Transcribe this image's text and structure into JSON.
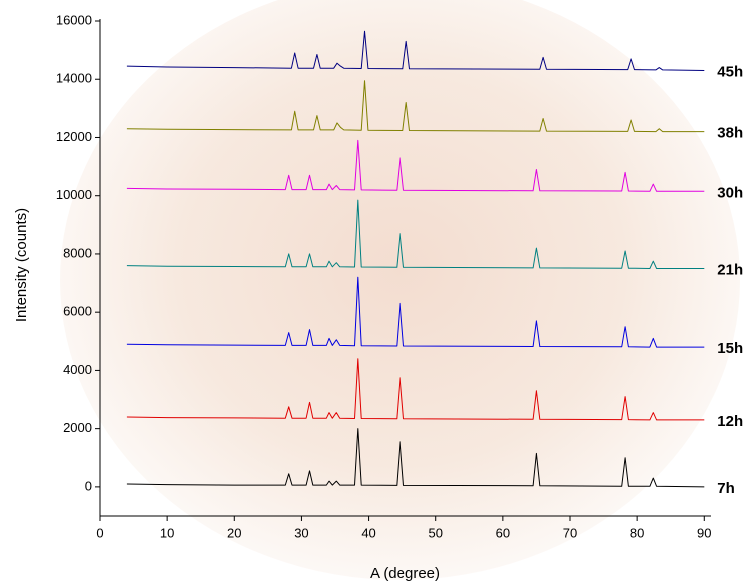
{
  "chart_data": {
    "type": "line",
    "x_label": "A (degree)",
    "y_label": "Intensity (counts)",
    "xlim": [
      0,
      91
    ],
    "ylim": [
      -1000,
      16000
    ],
    "xticks": [
      0,
      10,
      20,
      30,
      40,
      50,
      60,
      70,
      80,
      90
    ],
    "yticks": [
      0,
      2000,
      4000,
      6000,
      8000,
      10000,
      12000,
      14000,
      16000
    ],
    "grid": false,
    "series": [
      {
        "name": "45h",
        "color": "#000080",
        "x": [
          4,
          10,
          20,
          28.5,
          29,
          29.5,
          31.8,
          32.3,
          32.8,
          34.8,
          35.3,
          35.8,
          36.3,
          38.9,
          39.4,
          39.9,
          45.1,
          45.6,
          46.1,
          65.5,
          66,
          66.5,
          78.6,
          79.1,
          79.6,
          82.8,
          83.3,
          83.8,
          90
        ],
        "values": [
          14450,
          14420,
          14400,
          14380,
          14900,
          14380,
          14380,
          14850,
          14380,
          14380,
          14550,
          14450,
          14380,
          14370,
          15650,
          14370,
          14360,
          15300,
          14360,
          14340,
          14750,
          14340,
          14330,
          14700,
          14330,
          14320,
          14400,
          14320,
          14300
        ]
      },
      {
        "name": "38h",
        "color": "#808000",
        "x": [
          4,
          10,
          20,
          28.5,
          29,
          29.5,
          31.8,
          32.3,
          32.8,
          34.8,
          35.3,
          35.8,
          36.3,
          38.9,
          39.4,
          39.9,
          45.1,
          45.6,
          46.1,
          65.5,
          66,
          66.5,
          78.6,
          79.1,
          79.6,
          82.8,
          83.3,
          83.8,
          90
        ],
        "values": [
          12300,
          12280,
          12270,
          12260,
          12900,
          12260,
          12260,
          12750,
          12260,
          12260,
          12500,
          12350,
          12260,
          12250,
          13950,
          12250,
          12240,
          13200,
          12240,
          12220,
          12650,
          12220,
          12210,
          12600,
          12210,
          12200,
          12300,
          12200,
          12200
        ]
      },
      {
        "name": "30h",
        "color": "#e000e0",
        "x": [
          4,
          10,
          20,
          27.6,
          28.1,
          28.6,
          30.7,
          31.2,
          31.7,
          33.7,
          34.1,
          34.6,
          35.2,
          35.7,
          37.9,
          38.4,
          38.9,
          44.2,
          44.7,
          45.2,
          64.5,
          65,
          65.5,
          77.7,
          78.2,
          78.7,
          81.9,
          82.4,
          82.9,
          90
        ],
        "values": [
          10250,
          10230,
          10220,
          10210,
          10700,
          10210,
          10210,
          10700,
          10210,
          10210,
          10400,
          10210,
          10350,
          10210,
          10200,
          11900,
          10200,
          10190,
          11300,
          10190,
          10170,
          10900,
          10170,
          10160,
          10800,
          10160,
          10150,
          10400,
          10150,
          10150
        ]
      },
      {
        "name": "21h",
        "color": "#008080",
        "x": [
          4,
          10,
          20,
          27.6,
          28.1,
          28.6,
          30.7,
          31.2,
          31.7,
          33.7,
          34.1,
          34.6,
          35.2,
          35.7,
          37.9,
          38.4,
          38.9,
          44.2,
          44.7,
          45.2,
          64.5,
          65,
          65.5,
          77.7,
          78.2,
          78.7,
          81.9,
          82.4,
          82.9,
          90
        ],
        "values": [
          7600,
          7580,
          7570,
          7560,
          8000,
          7560,
          7560,
          8000,
          7560,
          7560,
          7750,
          7560,
          7700,
          7560,
          7550,
          9850,
          7550,
          7540,
          8700,
          7540,
          7520,
          8200,
          7520,
          7510,
          8100,
          7510,
          7500,
          7750,
          7500,
          7500
        ]
      },
      {
        "name": "15h",
        "color": "#0000e0",
        "x": [
          4,
          10,
          20,
          27.6,
          28.1,
          28.6,
          30.7,
          31.2,
          31.7,
          33.7,
          34.1,
          34.6,
          35.2,
          35.7,
          37.9,
          38.4,
          38.9,
          44.2,
          44.7,
          45.2,
          64.5,
          65,
          65.5,
          77.7,
          78.2,
          78.7,
          81.9,
          82.4,
          82.9,
          90
        ],
        "values": [
          4900,
          4880,
          4870,
          4860,
          5300,
          4860,
          4860,
          5400,
          4860,
          4860,
          5100,
          4860,
          5050,
          4860,
          4850,
          7200,
          4850,
          4840,
          6300,
          4840,
          4820,
          5700,
          4820,
          4810,
          5500,
          4810,
          4800,
          5100,
          4800,
          4800
        ]
      },
      {
        "name": "12h",
        "color": "#e00000",
        "x": [
          4,
          10,
          20,
          27.6,
          28.1,
          28.6,
          30.7,
          31.2,
          31.7,
          33.7,
          34.1,
          34.6,
          35.2,
          35.7,
          37.9,
          38.4,
          38.9,
          44.2,
          44.7,
          45.2,
          64.5,
          65,
          65.5,
          77.7,
          78.2,
          78.7,
          81.9,
          82.4,
          82.9,
          90
        ],
        "values": [
          2400,
          2380,
          2370,
          2360,
          2750,
          2360,
          2360,
          2900,
          2360,
          2360,
          2550,
          2360,
          2550,
          2360,
          2350,
          4400,
          2350,
          2340,
          3750,
          2340,
          2320,
          3300,
          2320,
          2310,
          3100,
          2310,
          2300,
          2550,
          2300,
          2300
        ]
      },
      {
        "name": "7h",
        "color": "#000000",
        "x": [
          4,
          10,
          20,
          27.6,
          28.1,
          28.6,
          30.7,
          31.2,
          31.7,
          33.7,
          34.1,
          34.6,
          35.2,
          35.7,
          37.9,
          38.4,
          38.9,
          44.2,
          44.7,
          45.2,
          64.5,
          65,
          65.5,
          77.7,
          78.2,
          78.7,
          81.9,
          82.4,
          82.9,
          90
        ],
        "values": [
          100,
          80,
          60,
          60,
          450,
          60,
          60,
          550,
          60,
          60,
          200,
          60,
          200,
          60,
          60,
          2000,
          60,
          50,
          1550,
          50,
          40,
          1150,
          40,
          20,
          1000,
          20,
          20,
          300,
          20,
          0
        ]
      }
    ]
  }
}
